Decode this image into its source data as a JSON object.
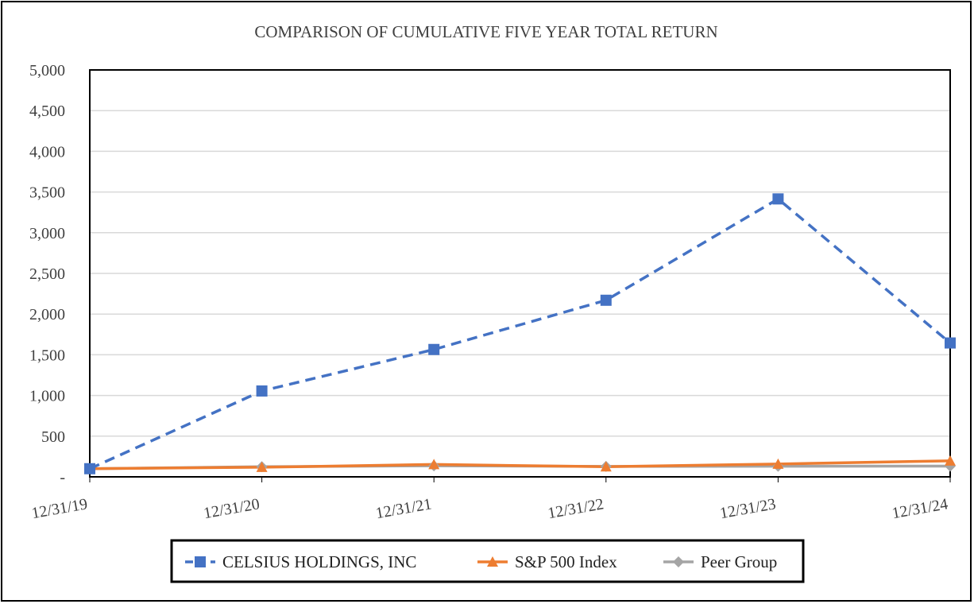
{
  "chart_data": {
    "type": "line",
    "title": "COMPARISON OF CUMULATIVE FIVE YEAR TOTAL RETURN",
    "categories": [
      "12/31/19",
      "12/31/20",
      "12/31/21",
      "12/31/22",
      "12/31/23",
      "12/31/24"
    ],
    "ylim": [
      0,
      5000
    ],
    "yticks": [
      0,
      500,
      1000,
      1500,
      2000,
      2500,
      3000,
      3500,
      4000,
      4500,
      5000
    ],
    "ytick_labels": [
      "-",
      "500",
      "1,000",
      "1,500",
      "2,000",
      "2,500",
      "3,000",
      "3,500",
      "4,000",
      "4,500",
      "5,000"
    ],
    "grid": true,
    "legend_position": "bottom",
    "series": [
      {
        "name": "CELSIUS HOLDINGS, INC",
        "color": "#4472C4",
        "marker": "square",
        "dash": true,
        "values": [
          100,
          1055,
          1565,
          2170,
          3415,
          1645
        ]
      },
      {
        "name": "S&P 500 Index",
        "color": "#ED7D31",
        "marker": "triangle",
        "dash": false,
        "values": [
          100,
          118,
          152,
          125,
          158,
          197
        ]
      },
      {
        "name": "Peer Group",
        "color": "#A5A5A5",
        "marker": "diamond",
        "dash": false,
        "values": [
          100,
          124,
          136,
          128,
          131,
          132
        ]
      }
    ]
  }
}
